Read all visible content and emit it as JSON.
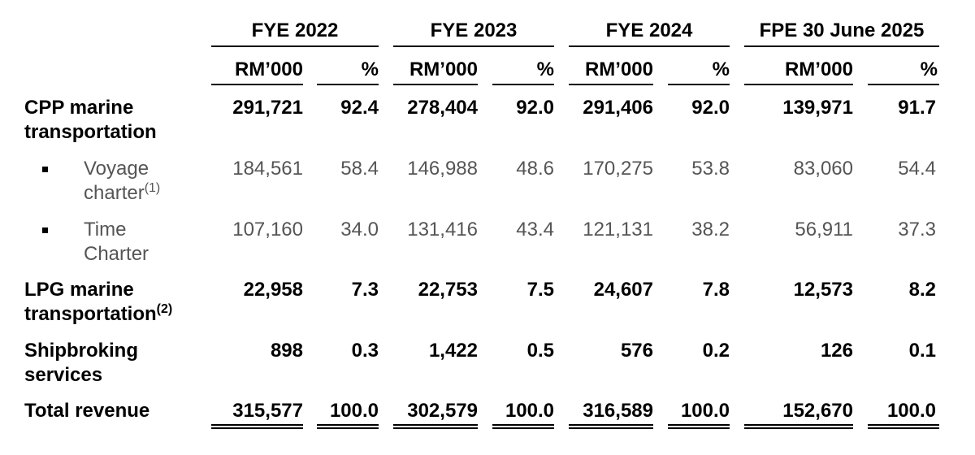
{
  "periods": [
    "FYE 2022",
    "FYE 2023",
    "FYE 2024",
    "FPE 30 June 2025"
  ],
  "unit_rm": "RM’000",
  "unit_pct": "%",
  "rows": [
    {
      "label_lines": [
        "CPP marine",
        "transportation"
      ],
      "values": [
        "291,721",
        "92.4",
        "278,404",
        "92.0",
        "291,406",
        "92.0",
        "139,971",
        "91.7"
      ]
    },
    {
      "label_lines": [
        "Voyage",
        "charter"
      ],
      "footnote": "(1)",
      "values": [
        "184,561",
        "58.4",
        "146,988",
        "48.6",
        "170,275",
        "53.8",
        "83,060",
        "54.4"
      ]
    },
    {
      "label_lines": [
        "Time",
        "Charter"
      ],
      "values": [
        "107,160",
        "34.0",
        "131,416",
        "43.4",
        "121,131",
        "38.2",
        "56,911",
        "37.3"
      ]
    },
    {
      "label_lines": [
        "LPG marine",
        "transportation"
      ],
      "footnote": "(2)",
      "values": [
        "22,958",
        "7.3",
        "22,753",
        "7.5",
        "24,607",
        "7.8",
        "12,573",
        "8.2"
      ]
    },
    {
      "label_lines": [
        "Shipbroking",
        "services"
      ],
      "values": [
        "898",
        "0.3",
        "1,422",
        "0.5",
        "576",
        "0.2",
        "126",
        "0.1"
      ]
    },
    {
      "label_lines": [
        "Total revenue"
      ],
      "values": [
        "315,577",
        "100.0",
        "302,579",
        "100.0",
        "316,589",
        "100.0",
        "152,670",
        "100.0"
      ]
    }
  ]
}
